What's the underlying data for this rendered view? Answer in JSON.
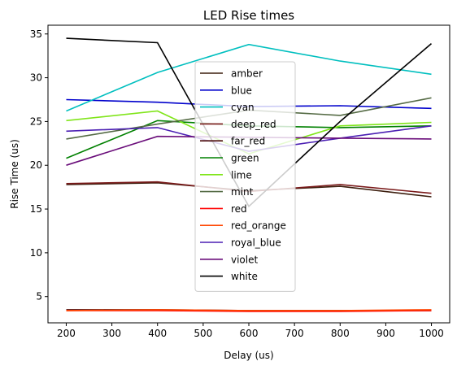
{
  "chart_data": {
    "type": "line",
    "title": "LED Rise times",
    "xlabel": "Delay (us)",
    "ylabel": "Rise Time (us)",
    "x": [
      200,
      400,
      600,
      800,
      1000
    ],
    "xlim": [
      160,
      1040
    ],
    "ylim": [
      2.0,
      36.0
    ],
    "xticks": [
      200,
      300,
      400,
      500,
      600,
      700,
      800,
      900,
      1000
    ],
    "yticks": [
      5,
      10,
      15,
      20,
      25,
      30,
      35
    ],
    "grid": false,
    "legend_position": "center",
    "series": [
      {
        "name": "amber",
        "color": "#3d1f0f",
        "values": [
          17.8,
          18.0,
          17.1,
          17.6,
          16.4
        ]
      },
      {
        "name": "blue",
        "color": "#0000cc",
        "values": [
          27.5,
          27.2,
          26.7,
          26.8,
          26.5
        ]
      },
      {
        "name": "cyan",
        "color": "#00bfbf",
        "values": [
          26.2,
          30.6,
          33.8,
          31.9,
          30.4
        ]
      },
      {
        "name": "deep_red",
        "color": "#7a1a1a",
        "values": [
          17.9,
          18.1,
          17.0,
          17.8,
          16.8
        ]
      },
      {
        "name": "far_red",
        "color": "#4b0a0a",
        "values": [
          3.5,
          3.5,
          3.4,
          3.4,
          3.4
        ]
      },
      {
        "name": "green",
        "color": "#008000",
        "values": [
          20.8,
          25.1,
          24.5,
          24.3,
          24.5
        ]
      },
      {
        "name": "lime",
        "color": "#80e51a",
        "values": [
          25.1,
          26.2,
          21.3,
          24.5,
          24.9
        ]
      },
      {
        "name": "mint",
        "color": "#556b45",
        "values": [
          23.0,
          24.7,
          26.3,
          25.7,
          27.7
        ]
      },
      {
        "name": "red",
        "color": "#ff0000",
        "values": [
          3.4,
          3.4,
          3.3,
          3.3,
          3.4
        ]
      },
      {
        "name": "red_orange",
        "color": "#ff4500",
        "values": [
          3.4,
          3.5,
          3.4,
          3.4,
          3.5
        ]
      },
      {
        "name": "royal_blue",
        "color": "#4b1fb3",
        "values": [
          23.9,
          24.3,
          21.6,
          23.1,
          24.5
        ]
      },
      {
        "name": "violet",
        "color": "#6a0d7a",
        "values": [
          20.0,
          23.3,
          23.2,
          23.1,
          23.0
        ]
      },
      {
        "name": "white",
        "color": "#000000",
        "values": [
          34.5,
          34.0,
          15.3,
          25.0,
          33.9
        ]
      }
    ]
  }
}
